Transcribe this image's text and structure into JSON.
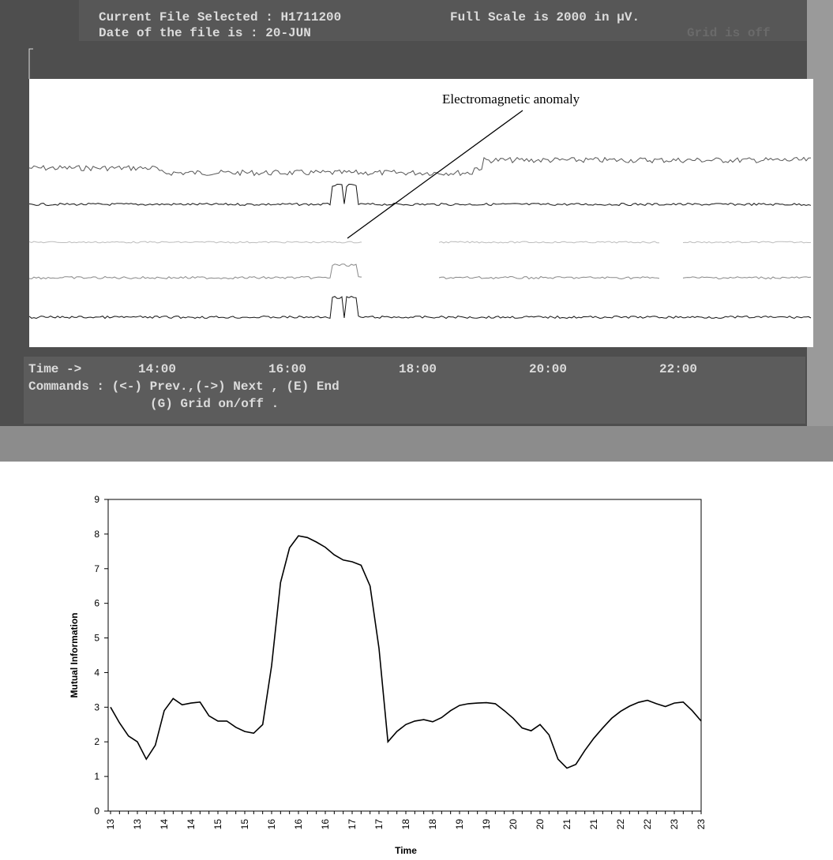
{
  "screen": {
    "header": {
      "file_selected": "Current File Selected : H1711200",
      "full_scale": "Full Scale is  2000  in µV.",
      "file_date": "Date of the file is    : 20-JUN",
      "grid_status": "Grid is off"
    },
    "annotation": "Electromagnetic anomaly",
    "time_label": "Time ->",
    "time_ticks": [
      "14:00",
      "16:00",
      "18:00",
      "20:00",
      "22:00"
    ],
    "commands": [
      "Commands  : (<-) Prev.,(->) Next , (E) End",
      "(G) Grid on/off ."
    ]
  },
  "chart_data": {
    "type": "line",
    "xlabel": "Time",
    "ylabel": "Mutual Information",
    "categories": [
      "13",
      null,
      null,
      "13",
      null,
      null,
      "14",
      null,
      null,
      "14",
      null,
      null,
      "15",
      null,
      null,
      "15",
      null,
      null,
      "16",
      null,
      null,
      "16",
      null,
      null,
      "16",
      null,
      null,
      "17",
      null,
      null,
      "17",
      null,
      null,
      "18",
      null,
      null,
      "18",
      null,
      null,
      "19",
      null,
      null,
      "19",
      null,
      null,
      "20",
      null,
      null,
      "20",
      null,
      null,
      "21",
      null,
      null,
      "21",
      null,
      null,
      "22",
      null,
      null,
      "22",
      null,
      null,
      "23",
      null,
      null,
      "23"
    ],
    "series": [
      {
        "color": "#000000",
        "values": [
          3.0,
          2.55,
          2.17,
          2.0,
          1.5,
          1.9,
          2.9,
          3.25,
          3.07,
          3.12,
          3.15,
          2.75,
          2.6,
          2.6,
          2.42,
          2.3,
          2.25,
          2.5,
          4.2,
          6.6,
          7.6,
          7.95,
          7.9,
          7.77,
          7.62,
          7.4,
          7.25,
          7.2,
          7.1,
          6.5,
          4.7,
          2.0,
          2.3,
          2.5,
          2.6,
          2.64,
          2.58,
          2.7,
          2.9,
          3.05,
          3.1,
          3.12,
          3.13,
          3.1,
          2.9,
          2.68,
          2.4,
          2.32,
          2.5,
          2.2,
          1.5,
          1.24,
          1.35,
          1.75,
          2.1,
          2.4,
          2.68,
          2.88,
          3.03,
          3.14,
          3.2,
          3.1,
          3.02,
          3.12,
          3.15,
          2.9,
          2.6
        ]
      }
    ],
    "ylim": [
      0,
      9
    ],
    "yticks": [
      0,
      1,
      2,
      3,
      4,
      5,
      6,
      7,
      8,
      9
    ],
    "grid": false
  }
}
